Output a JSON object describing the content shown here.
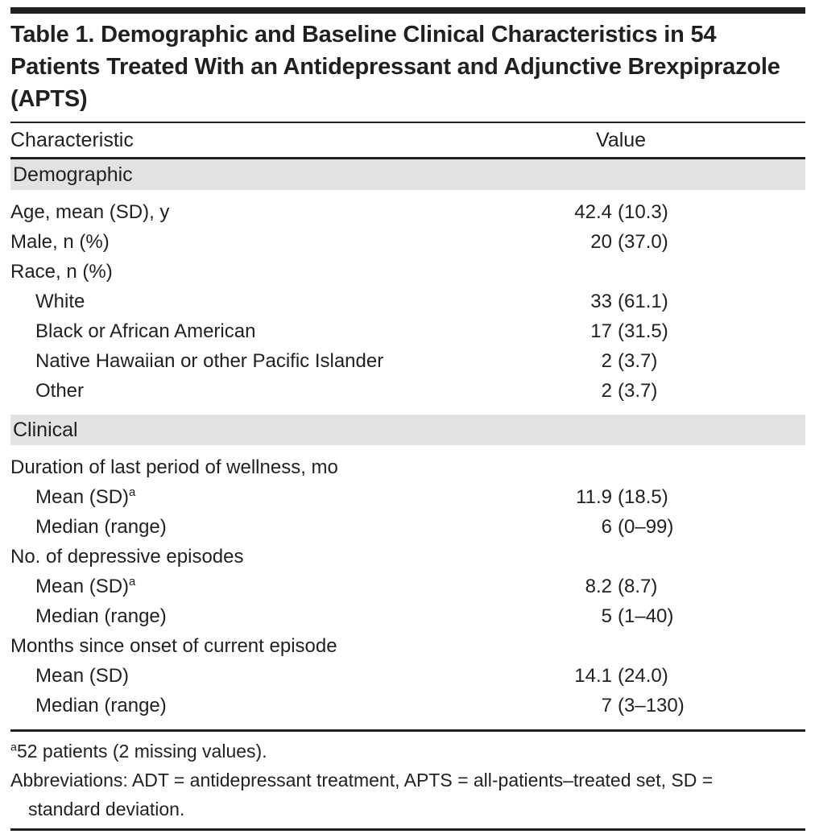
{
  "document": {
    "title": "Table 1. Demographic and Baseline Clinical Characteristics in 54 Patients Treated With an Antidepressant and Adjunctive Brexpiprazole (APTS)",
    "columns": {
      "characteristic": "Characteristic",
      "value": "Value"
    },
    "sections": [
      {
        "header": "Demographic",
        "rows": [
          {
            "label": "Age, mean (SD), y",
            "sup": "",
            "indent": 0,
            "value": {
              "number": "42.4",
              "paren": "(10.3)"
            }
          },
          {
            "label": "Male, n (%)",
            "sup": "",
            "indent": 0,
            "value": {
              "number": "20",
              "paren": "(37.0)"
            }
          },
          {
            "label": "Race, n (%)",
            "sup": "",
            "indent": 0,
            "value": {
              "number": "",
              "paren": ""
            }
          },
          {
            "label": "White",
            "sup": "",
            "indent": 1,
            "value": {
              "number": "33",
              "paren": "(61.1)"
            }
          },
          {
            "label": "Black or African American",
            "sup": "",
            "indent": 1,
            "value": {
              "number": "17",
              "paren": "(31.5)"
            }
          },
          {
            "label": "Native Hawaiian or other Pacific Islander",
            "sup": "",
            "indent": 1,
            "value": {
              "number": "2",
              "paren": "(3.7)"
            }
          },
          {
            "label": "Other",
            "sup": "",
            "indent": 1,
            "value": {
              "number": "2",
              "paren": "(3.7)"
            }
          }
        ]
      },
      {
        "header": "Clinical",
        "rows": [
          {
            "label": "Duration of last period of wellness, mo",
            "sup": "",
            "indent": 0,
            "value": {
              "number": "",
              "paren": ""
            }
          },
          {
            "label": "Mean (SD)",
            "sup": "a",
            "indent": 1,
            "value": {
              "number": "11.9",
              "paren": "(18.5)"
            }
          },
          {
            "label": "Median (range)",
            "sup": "",
            "indent": 1,
            "value": {
              "number": "6",
              "paren": "(0–99)"
            }
          },
          {
            "label": "No. of depressive episodes",
            "sup": "",
            "indent": 0,
            "value": {
              "number": "",
              "paren": ""
            }
          },
          {
            "label": "Mean (SD)",
            "sup": "a",
            "indent": 1,
            "value": {
              "number": "8.2",
              "paren": "(8.7)"
            }
          },
          {
            "label": "Median (range)",
            "sup": "",
            "indent": 1,
            "value": {
              "number": "5",
              "paren": "(1–40)"
            }
          },
          {
            "label": "Months since onset of current episode",
            "sup": "",
            "indent": 0,
            "value": {
              "number": "",
              "paren": ""
            }
          },
          {
            "label": "Mean (SD)",
            "sup": "",
            "indent": 1,
            "value": {
              "number": "14.1",
              "paren": "(24.0)"
            }
          },
          {
            "label": "Median (range)",
            "sup": "",
            "indent": 1,
            "value": {
              "number": "7",
              "paren": "(3–130)"
            }
          }
        ]
      }
    ],
    "footnotes": [
      {
        "marker": "a",
        "text": "52 patients (2 missing values)."
      },
      {
        "marker": "",
        "text": "Abbreviations: ADT = antidepressant treatment, APTS = all-patients–treated set, SD = standard deviation."
      }
    ],
    "colors": {
      "text": "#231f20",
      "section_band": "#e2e2e2",
      "rule": "#231f20",
      "background": "#ffffff"
    }
  }
}
